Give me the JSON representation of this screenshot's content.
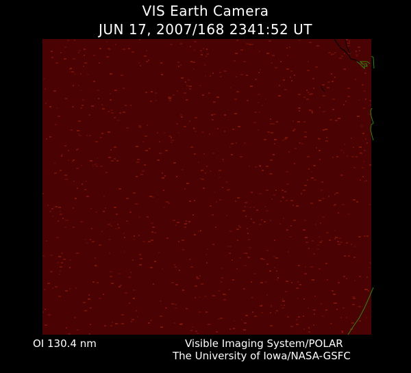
{
  "header": {
    "title": "VIS Earth Camera",
    "datetime": "JUN 17, 2007/168 2341:52 UT"
  },
  "image": {
    "background_color": "#4a0202",
    "speckle_color": "#8a1a0a",
    "coastline_color": "#2a8a00",
    "terminator_color": "#000000"
  },
  "footer": {
    "wavelength": "OI  130.4 nm",
    "instrument": "Visible Imaging System/POLAR",
    "institution": "The University of Iowa/NASA-GSFC"
  }
}
